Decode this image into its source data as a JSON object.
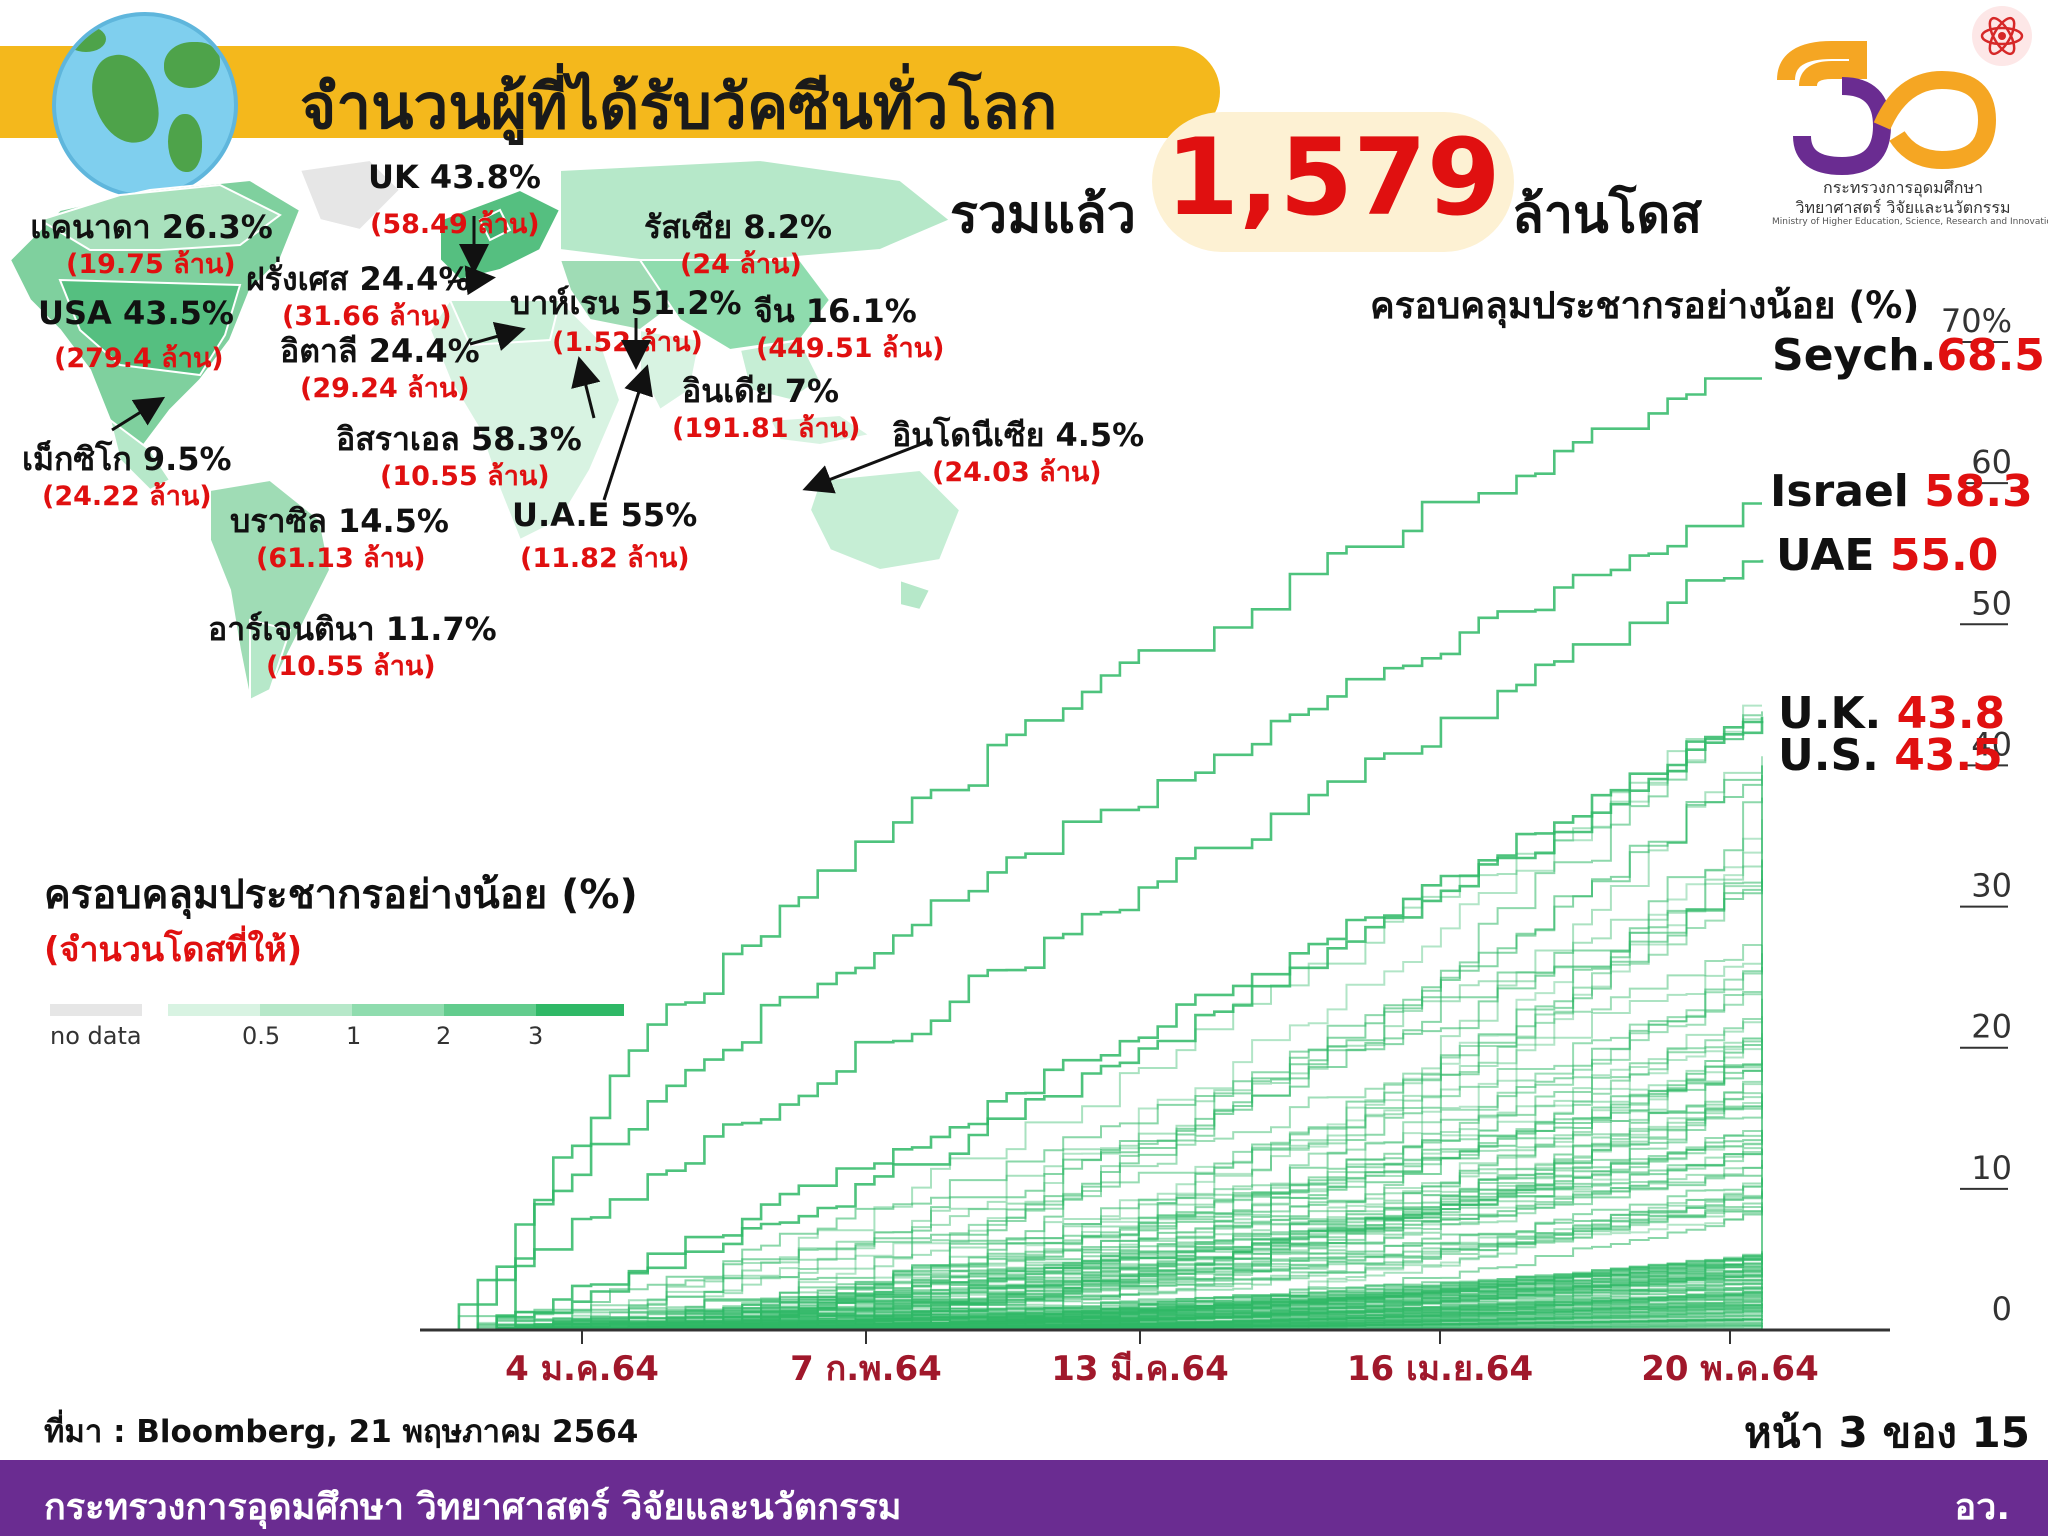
{
  "header": {
    "title": "จำนวนผู้ที่ได้รับวัคซีนทั่วโลก",
    "total_prefix": "รวมแล้ว",
    "total_value": "1,579",
    "total_suffix": "ล้านโดส"
  },
  "logo": {
    "line1": "กระทรวงการอุดมศึกษา",
    "line2": "วิทยาศาสตร์ วิจัยและนวัตกรรม",
    "line3": "Ministry of Higher Education, Science, Research and Innovation"
  },
  "map_labels": [
    {
      "name": "UK 43.8%",
      "doses": "(58.49 ล้าน)"
    },
    {
      "name": "แคนาดา 26.3%",
      "doses": "(19.75 ล้าน)"
    },
    {
      "name": "รัสเซีย 8.2%",
      "doses": "(24 ล้าน)"
    },
    {
      "name": "ฝรั่งเศส 24.4%",
      "doses": "(31.66 ล้าน)"
    },
    {
      "name": "USA 43.5%",
      "doses": "(279.4 ล้าน)"
    },
    {
      "name": "บาห์เรน 51.2%",
      "doses": "(1.52 ล้าน)"
    },
    {
      "name": "จีน 16.1%",
      "doses": "(449.51 ล้าน)"
    },
    {
      "name": "อิตาลี 24.4%",
      "doses": "(29.24 ล้าน)"
    },
    {
      "name": "อินเดีย 7%",
      "doses": "(191.81 ล้าน)"
    },
    {
      "name": "อิสราเอล 58.3%",
      "doses": "(10.55 ล้าน)"
    },
    {
      "name": "อินโดนีเซีย 4.5%",
      "doses": "(24.03 ล้าน)"
    },
    {
      "name": "เม็กซิโก 9.5%",
      "doses": "(24.22 ล้าน)"
    },
    {
      "name": "บราซิล 14.5%",
      "doses": "(61.13 ล้าน)"
    },
    {
      "name": "U.A.E 55%",
      "doses": "(11.82 ล้าน)"
    },
    {
      "name": "อาร์เจนตินา 11.7%",
      "doses": "(10.55 ล้าน)"
    }
  ],
  "legend": {
    "title": "ครอบคลุมประชากรอย่างน้อย (%)",
    "subtitle": "(จำนวนโดสที่ให้)",
    "no_data": "no data",
    "ticks": [
      "0.5",
      "1",
      "2",
      "3"
    ],
    "colors": [
      "#e6e6e6",
      "#d8f3e2",
      "#b6e8c9",
      "#8fdcae",
      "#62cc8d",
      "#2fb866"
    ]
  },
  "chart_data": {
    "type": "line",
    "title": "ครอบคลุมประชากรอย่างน้อย (%)",
    "x_ticks": [
      "4 ม.ค.64",
      "7 ก.พ.64",
      "13 มี.ค.64",
      "16 เม.ย.64",
      "20 พ.ค.64"
    ],
    "y_ticks": [
      "0",
      "10",
      "20",
      "30",
      "40",
      "50",
      "60",
      "70%"
    ],
    "ylim": [
      0,
      70
    ],
    "line_color": "#2fb866",
    "grid": false,
    "highlighted": [
      {
        "name": "Seych.",
        "value": "68.5"
      },
      {
        "name": "Israel",
        "value": "58.3"
      },
      {
        "name": "UAE",
        "value": "55.0"
      },
      {
        "name": "U.K.",
        "value": "43.8"
      },
      {
        "name": "U.S.",
        "value": "43.5"
      }
    ],
    "series": [
      {
        "name": "Seych.",
        "end_value": 68.5,
        "start": 0.05,
        "shape": 0.55
      },
      {
        "name": "Israel",
        "end_value": 58.3,
        "start": 0.02,
        "shape": 0.65
      },
      {
        "name": "UAE",
        "end_value": 55.0,
        "start": 0.0,
        "shape": 0.9
      },
      {
        "name": "U.K.",
        "end_value": 43.8,
        "start": 0.03,
        "shape": 1.1
      },
      {
        "name": "U.S.",
        "end_value": 43.5,
        "start": 0.03,
        "shape": 1.2
      }
    ]
  },
  "footer": {
    "source": "ที่มา : Bloomberg, 21 พฤษภาคม 2564",
    "page": "หน้า 3 ของ 15 หน้า",
    "ministry": "กระทรวงการอุดมศึกษา วิทยาศาสตร์ วิจัยและนวัตกรรม",
    "abbr": "อว."
  }
}
